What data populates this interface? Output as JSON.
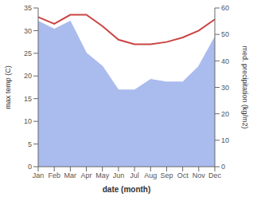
{
  "chart_data": {
    "type": "line",
    "xlabel": "date (month)",
    "ylabel": "max temp (C)",
    "y2label": "med. precipitation (kg/m2)",
    "categories": [
      "Jan",
      "Feb",
      "Mar",
      "Apr",
      "May",
      "Jun",
      "Jul",
      "Aug",
      "Sep",
      "Oct",
      "Nov",
      "Dec"
    ],
    "series": [
      {
        "type": "area",
        "axis": "y2",
        "color": "#aabbee",
        "values": [
          55,
          52,
          55,
          43,
          38,
          29,
          29,
          33,
          32,
          32,
          38,
          49
        ]
      },
      {
        "type": "line",
        "color": "#cc4444",
        "values": [
          33.0,
          31.5,
          33.5,
          33.5,
          31.0,
          28.0,
          27.0,
          27.0,
          27.5,
          28.5,
          30.0,
          32.5
        ]
      }
    ],
    "ylim": [
      0,
      35
    ],
    "yticks": [
      0,
      5,
      10,
      15,
      20,
      25,
      30,
      35
    ],
    "y2lim": [
      0,
      60
    ],
    "y2ticks": [
      0,
      10,
      20,
      30,
      40,
      50,
      60
    ],
    "grid": false
  }
}
